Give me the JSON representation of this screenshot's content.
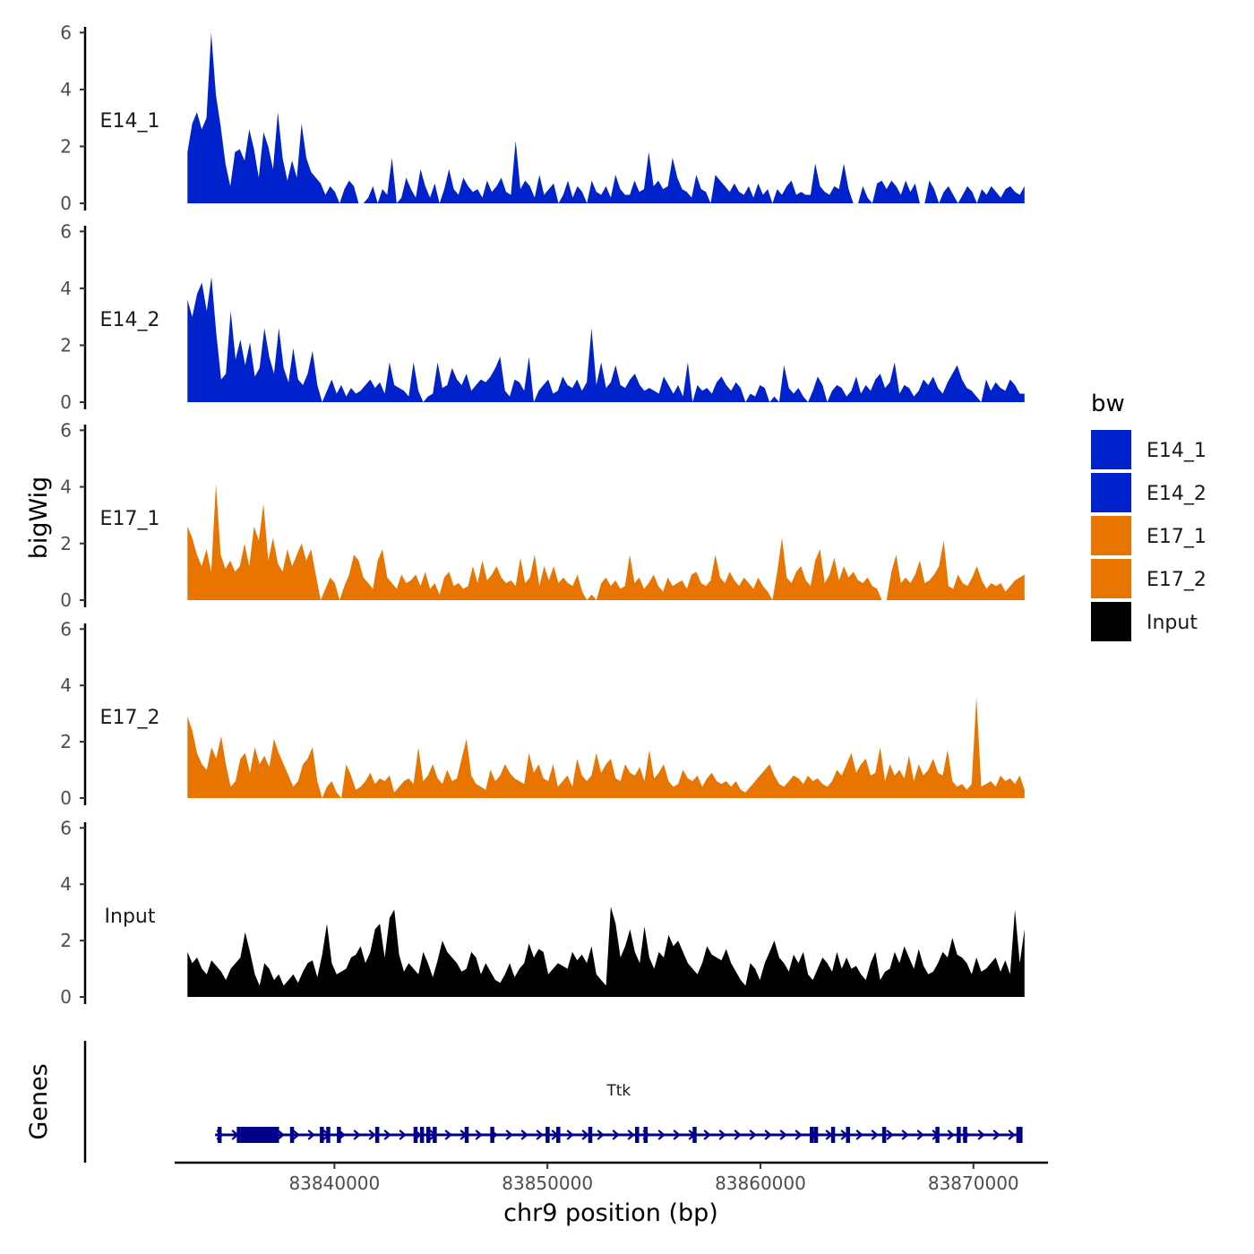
{
  "chart_data": {
    "type": "area",
    "layout": "stacked-tracks",
    "chromosome": "chr9",
    "xlim": [
      83832500,
      83873500
    ],
    "xlabel": "chr9 position (bp)",
    "ylabel": "bigWig",
    "ylim": [
      0,
      6.2
    ],
    "y_ticks": [
      0,
      2,
      4,
      6
    ],
    "x_ticks": [
      {
        "value": 83840000,
        "label": "83840000"
      },
      {
        "value": 83850000,
        "label": "83850000"
      },
      {
        "value": 83860000,
        "label": "83860000"
      },
      {
        "value": 83870000,
        "label": "83870000"
      }
    ],
    "legend": {
      "title": "bw",
      "entries": [
        {
          "label": "E14_1",
          "color": "#0022CC"
        },
        {
          "label": "E14_2",
          "color": "#0022CC"
        },
        {
          "label": "E17_1",
          "color": "#E87500"
        },
        {
          "label": "E17_2",
          "color": "#E87500"
        },
        {
          "label": "Input",
          "color": "#000000"
        }
      ]
    },
    "series": [
      {
        "name": "E14_1",
        "label": "E14_1",
        "color": "#0022CC",
        "x_start": 83833100,
        "x_end": 83872400,
        "values": [
          1.8,
          2.8,
          3.2,
          2.6,
          3.0,
          6.0,
          3.8,
          2.7,
          1.4,
          0.6,
          1.8,
          1.9,
          1.5,
          2.6,
          1.9,
          0.9,
          2.5,
          2.0,
          1.2,
          3.2,
          1.6,
          0.8,
          1.5,
          0.9,
          2.8,
          1.6,
          1.1,
          0.9,
          0.7,
          0.3,
          0.6,
          0.4,
          0.0,
          0.5,
          0.8,
          0.6,
          0.0,
          0.0,
          0.2,
          0.6,
          0.0,
          0.5,
          0.3,
          1.6,
          0.0,
          0.2,
          0.9,
          0.5,
          0.2,
          1.2,
          0.6,
          0.2,
          0.7,
          0.0,
          0.5,
          1.2,
          0.5,
          0.3,
          0.9,
          0.6,
          0.4,
          0.5,
          0.2,
          0.8,
          0.4,
          0.6,
          0.9,
          0.4,
          0.3,
          2.2,
          0.5,
          0.8,
          0.6,
          0.2,
          1.0,
          0.3,
          0.5,
          0.7,
          0.0,
          0.3,
          0.8,
          0.2,
          0.6,
          0.4,
          0.0,
          0.8,
          0.4,
          0.3,
          0.6,
          0.2,
          1.0,
          0.5,
          0.3,
          0.3,
          0.8,
          0.4,
          0.5,
          1.8,
          0.6,
          0.8,
          0.5,
          0.6,
          1.6,
          0.9,
          0.5,
          0.4,
          0.2,
          1.0,
          0.5,
          0.4,
          0.0,
          1.0,
          0.8,
          0.6,
          0.4,
          0.7,
          0.4,
          0.3,
          0.6,
          0.2,
          0.7,
          0.3,
          0.5,
          0.0,
          0.5,
          0.3,
          0.6,
          0.8,
          0.3,
          0.4,
          0.3,
          0.3,
          1.4,
          0.6,
          0.4,
          0.3,
          0.6,
          0.5,
          1.4,
          0.5,
          0.0,
          0.0,
          0.6,
          0.2,
          0.0,
          0.7,
          0.8,
          0.5,
          0.8,
          0.6,
          0.3,
          0.8,
          0.4,
          0.7,
          0.0,
          0.0,
          0.8,
          0.5,
          0.0,
          0.4,
          0.6,
          0.3,
          0.0,
          0.3,
          0.6,
          0.4,
          0.0,
          0.5,
          0.3,
          0.6,
          0.4,
          0.2,
          0.5,
          0.6,
          0.4,
          0.3,
          0.6
        ]
      },
      {
        "name": "E14_2",
        "label": "E14_2",
        "color": "#0022CC",
        "x_start": 83833100,
        "x_end": 83872400,
        "values": [
          3.6,
          3.0,
          3.8,
          4.2,
          3.2,
          4.4,
          2.4,
          0.8,
          1.0,
          3.2,
          1.5,
          2.2,
          1.3,
          2.1,
          0.9,
          1.2,
          2.6,
          1.6,
          1.0,
          2.6,
          1.2,
          0.7,
          1.9,
          0.8,
          0.6,
          1.0,
          1.8,
          0.6,
          0.0,
          0.4,
          0.8,
          0.3,
          0.6,
          0.2,
          0.5,
          0.3,
          0.4,
          0.6,
          0.8,
          0.5,
          0.7,
          0.3,
          1.4,
          0.6,
          0.5,
          0.4,
          0.2,
          1.4,
          0.4,
          0.0,
          0.2,
          0.3,
          1.4,
          0.5,
          0.6,
          1.2,
          0.8,
          0.6,
          1.0,
          0.4,
          0.6,
          0.8,
          0.7,
          0.9,
          1.2,
          1.6,
          0.4,
          0.2,
          0.8,
          0.7,
          0.4,
          1.6,
          0.0,
          0.4,
          0.6,
          0.8,
          0.3,
          0.4,
          0.9,
          0.6,
          0.5,
          0.8,
          0.4,
          0.7,
          2.6,
          0.6,
          1.4,
          0.5,
          0.7,
          1.3,
          0.6,
          0.5,
          0.8,
          1.0,
          0.6,
          0.4,
          0.5,
          0.4,
          0.3,
          0.9,
          0.6,
          0.3,
          0.6,
          0.2,
          1.4,
          0.0,
          0.6,
          0.4,
          0.5,
          0.3,
          0.7,
          0.9,
          0.6,
          0.4,
          0.7,
          0.5,
          0.0,
          0.3,
          0.2,
          0.6,
          0.5,
          0.0,
          0.2,
          0.0,
          1.3,
          0.5,
          0.3,
          0.5,
          0.2,
          0.0,
          0.4,
          0.9,
          0.6,
          0.0,
          0.4,
          0.6,
          0.5,
          0.2,
          0.4,
          0.9,
          0.3,
          0.6,
          0.4,
          0.8,
          1.0,
          0.5,
          0.7,
          1.4,
          0.3,
          0.6,
          0.5,
          0.2,
          0.4,
          0.8,
          0.6,
          0.9,
          0.5,
          0.3,
          0.7,
          1.0,
          1.3,
          0.8,
          0.5,
          0.4,
          0.2,
          0.0,
          0.8,
          0.4,
          0.7,
          0.5,
          0.4,
          0.8,
          0.6,
          0.3,
          0.3
        ]
      },
      {
        "name": "E17_1",
        "label": "E17_1",
        "color": "#E87500",
        "x_start": 83833100,
        "x_end": 83872400,
        "values": [
          2.6,
          2.2,
          1.6,
          1.2,
          1.8,
          1.0,
          4.1,
          1.6,
          1.1,
          1.4,
          1.0,
          1.2,
          2.0,
          1.2,
          2.6,
          2.1,
          3.4,
          1.4,
          2.2,
          1.3,
          1.0,
          1.8,
          1.2,
          1.6,
          2.0,
          1.4,
          1.8,
          0.9,
          0.0,
          0.4,
          0.8,
          0.6,
          0.0,
          0.5,
          0.9,
          1.6,
          1.4,
          0.8,
          0.6,
          0.4,
          1.4,
          1.8,
          0.8,
          0.6,
          0.4,
          0.9,
          0.6,
          0.7,
          0.9,
          0.5,
          1.0,
          0.4,
          0.6,
          0.2,
          0.8,
          1.0,
          0.5,
          0.6,
          0.4,
          0.5,
          1.2,
          0.6,
          1.4,
          0.7,
          0.9,
          1.2,
          0.8,
          0.6,
          0.7,
          0.5,
          1.5,
          0.6,
          0.8,
          1.6,
          0.5,
          1.2,
          0.7,
          1.2,
          0.6,
          0.8,
          0.6,
          0.5,
          0.9,
          0.3,
          0.0,
          0.2,
          0.0,
          0.6,
          0.8,
          0.5,
          0.7,
          0.4,
          0.5,
          1.6,
          0.6,
          0.8,
          0.4,
          0.6,
          0.9,
          0.5,
          0.3,
          0.8,
          0.5,
          0.6,
          0.7,
          0.4,
          0.9,
          1.0,
          0.6,
          0.5,
          0.7,
          1.6,
          0.8,
          0.6,
          1.0,
          0.7,
          0.5,
          0.8,
          0.6,
          0.4,
          0.8,
          0.5,
          0.3,
          0.0,
          1.0,
          2.2,
          0.8,
          0.6,
          1.0,
          1.2,
          0.7,
          0.5,
          1.4,
          1.8,
          0.6,
          0.9,
          1.5,
          0.7,
          1.2,
          0.8,
          1.0,
          0.7,
          0.6,
          0.8,
          0.5,
          0.4,
          0.0,
          0.0,
          1.0,
          1.6,
          0.6,
          0.8,
          0.6,
          0.9,
          1.4,
          0.6,
          0.7,
          0.9,
          1.2,
          2.1,
          0.5,
          0.4,
          0.9,
          0.6,
          0.5,
          0.8,
          1.2,
          0.7,
          0.4,
          0.6,
          0.5,
          0.6,
          0.3,
          0.5,
          0.7,
          0.8,
          0.9
        ]
      },
      {
        "name": "E17_2",
        "label": "E17_2",
        "color": "#E87500",
        "x_start": 83833100,
        "x_end": 83872400,
        "values": [
          2.9,
          2.4,
          1.6,
          1.2,
          1.0,
          1.8,
          1.4,
          2.2,
          1.2,
          0.4,
          0.6,
          1.4,
          1.6,
          0.9,
          1.8,
          1.2,
          1.5,
          1.1,
          2.1,
          1.6,
          1.2,
          0.8,
          0.4,
          0.6,
          1.2,
          1.4,
          1.8,
          0.6,
          0.0,
          0.4,
          0.6,
          0.2,
          0.0,
          1.2,
          0.8,
          0.3,
          0.4,
          0.6,
          0.9,
          0.5,
          0.7,
          0.6,
          0.8,
          0.2,
          0.4,
          0.6,
          0.7,
          0.5,
          1.8,
          0.6,
          0.8,
          1.2,
          0.7,
          0.5,
          1.0,
          0.6,
          0.7,
          1.4,
          2.1,
          0.8,
          0.5,
          0.4,
          0.3,
          1.0,
          0.6,
          0.8,
          1.2,
          0.9,
          0.7,
          0.6,
          0.5,
          1.6,
          0.9,
          1.2,
          0.7,
          0.6,
          1.2,
          0.4,
          0.6,
          0.8,
          0.4,
          1.4,
          0.8,
          0.6,
          0.8,
          1.6,
          0.9,
          1.2,
          1.4,
          0.7,
          0.6,
          1.2,
          0.9,
          0.8,
          1.1,
          0.6,
          1.7,
          0.7,
          0.9,
          1.2,
          0.6,
          0.4,
          0.5,
          1.0,
          0.7,
          0.6,
          0.8,
          0.4,
          0.7,
          0.9,
          0.6,
          0.5,
          0.6,
          0.4,
          0.6,
          0.3,
          0.2,
          0.4,
          0.6,
          0.8,
          1.0,
          1.2,
          0.8,
          0.5,
          0.4,
          0.6,
          0.8,
          0.7,
          0.5,
          0.8,
          0.6,
          0.7,
          0.5,
          0.4,
          0.6,
          1.0,
          0.8,
          1.2,
          1.6,
          0.9,
          1.2,
          1.4,
          0.8,
          0.9,
          1.8,
          0.6,
          1.2,
          0.8,
          1.0,
          0.7,
          1.5,
          0.6,
          1.2,
          0.8,
          1.0,
          1.4,
          0.9,
          0.8,
          1.7,
          0.6,
          0.4,
          0.5,
          0.3,
          0.5,
          3.6,
          0.4,
          0.5,
          0.6,
          0.4,
          0.8,
          0.6,
          0.7,
          0.5,
          0.8,
          0.3
        ]
      },
      {
        "name": "Input",
        "label": "Input",
        "color": "#000000",
        "x_start": 83833100,
        "x_end": 83872400,
        "values": [
          1.6,
          1.2,
          1.4,
          1.0,
          0.8,
          1.3,
          1.1,
          0.9,
          0.6,
          1.0,
          1.2,
          1.4,
          2.3,
          1.6,
          0.8,
          0.4,
          1.2,
          1.0,
          0.6,
          0.8,
          0.4,
          0.6,
          0.8,
          0.5,
          0.9,
          1.2,
          1.3,
          0.7,
          1.5,
          2.6,
          1.2,
          0.8,
          0.9,
          1.0,
          1.4,
          1.5,
          1.8,
          1.2,
          1.6,
          2.4,
          2.6,
          1.4,
          2.8,
          3.1,
          1.5,
          0.9,
          1.2,
          1.0,
          0.8,
          1.6,
          1.2,
          0.7,
          1.3,
          2.0,
          1.6,
          1.4,
          1.2,
          0.9,
          1.0,
          1.6,
          1.4,
          0.8,
          1.2,
          0.9,
          0.6,
          0.5,
          0.8,
          1.2,
          0.7,
          1.0,
          1.2,
          1.9,
          1.4,
          1.7,
          1.6,
          0.8,
          1.0,
          1.2,
          1.1,
          1.0,
          1.6,
          1.3,
          1.5,
          1.2,
          1.8,
          0.8,
          0.6,
          0.4,
          3.2,
          2.6,
          1.4,
          1.8,
          2.4,
          1.6,
          1.2,
          2.5,
          1.4,
          1.0,
          1.6,
          1.4,
          2.2,
          1.8,
          2.0,
          1.6,
          1.2,
          1.0,
          0.8,
          1.2,
          1.8,
          1.5,
          1.4,
          1.3,
          1.7,
          1.2,
          0.9,
          0.6,
          0.4,
          1.2,
          1.0,
          0.6,
          1.2,
          1.6,
          2.0,
          1.4,
          1.2,
          0.9,
          1.5,
          1.2,
          1.6,
          0.8,
          0.6,
          1.0,
          1.4,
          1.2,
          0.9,
          1.6,
          1.0,
          1.4,
          1.0,
          1.1,
          0.8,
          0.6,
          1.2,
          1.6,
          0.6,
          0.9,
          1.0,
          1.6,
          1.2,
          1.8,
          1.4,
          1.0,
          1.7,
          1.1,
          0.8,
          0.9,
          1.2,
          1.6,
          1.4,
          2.1,
          1.5,
          1.4,
          1.2,
          0.8,
          1.4,
          0.9,
          1.0,
          1.2,
          1.4,
          0.9,
          1.3,
          0.8,
          3.1,
          1.2,
          2.4
        ]
      }
    ],
    "genes": {
      "track_label": "Genes",
      "items": [
        {
          "name": "Ttk",
          "strand": "+",
          "start": 83834400,
          "end": 83872300,
          "thick_exons": [
            [
              83835600,
              83837400
            ]
          ],
          "exons": [
            83834600,
            83835500,
            83838000,
            83839400,
            83839700,
            83840200,
            83842000,
            83843800,
            83844100,
            83844400,
            83844700,
            83846200,
            83847400,
            83850000,
            83850500,
            83852000,
            83854200,
            83854600,
            83856900,
            83862400,
            83862600,
            83863400,
            83864100,
            83865800,
            83868300,
            83869300,
            83869600,
            83872100,
            83872200
          ]
        }
      ]
    }
  }
}
